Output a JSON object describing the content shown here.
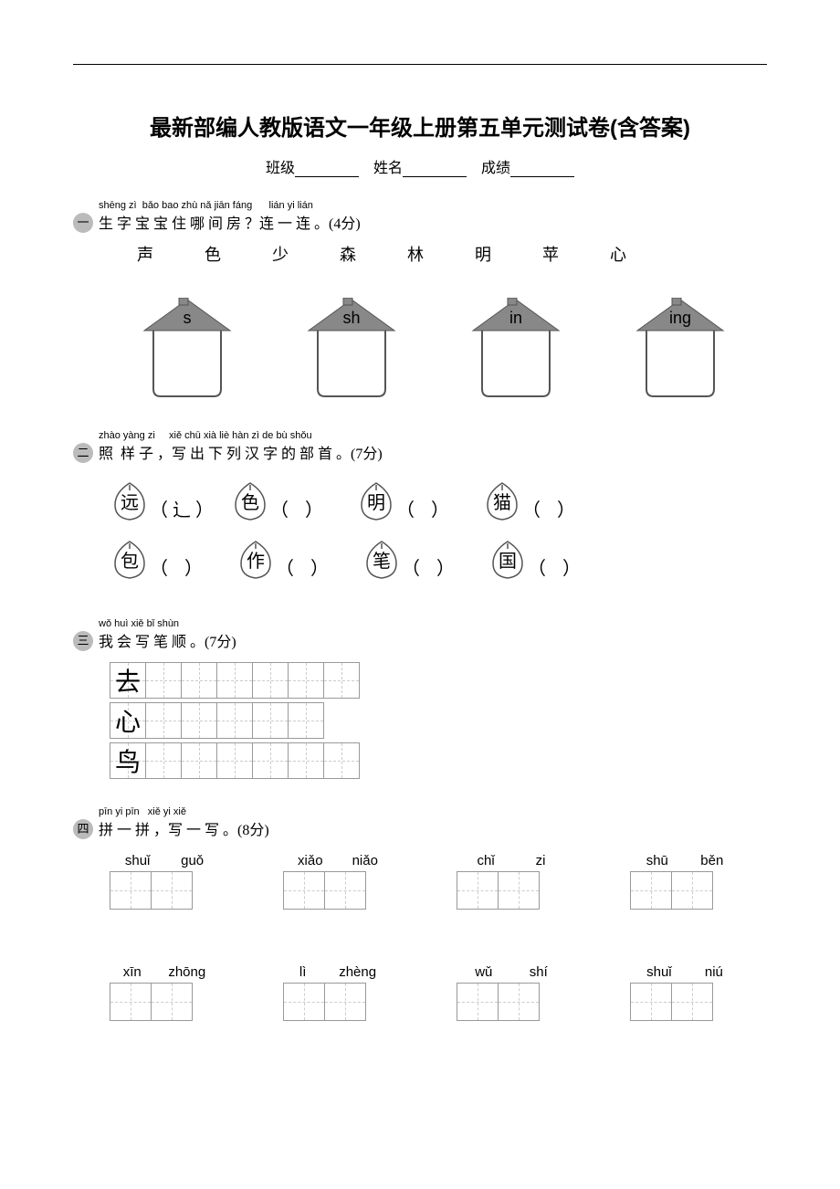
{
  "title": "最新部编人教版语文一年级上册第五单元测试卷(含答案)",
  "info": {
    "class_label": "班级",
    "name_label": "姓名",
    "score_label": "成绩"
  },
  "q1": {
    "marker": "一",
    "pinyin": "shēng zì  bǎo bao zhù nǎ jiān fáng      lián yi lián",
    "hanzi": "生 字 宝 宝 住 哪 间 房 ？连 一 连 。",
    "points": "(4分)",
    "chars": [
      "声",
      "色",
      "少",
      "森",
      "林",
      "明",
      "苹",
      "心"
    ],
    "houses": [
      "s",
      "sh",
      "in",
      "ing"
    ]
  },
  "q2": {
    "marker": "二",
    "pinyin": "zhào yàng zi     xiě chū xià liè hàn zì de bù shǒu",
    "hanzi": "照  样 子 ，写 出 下 列 汉 字 的 部 首 。",
    "points": "(7分)",
    "items": [
      {
        "char": "远",
        "ans": "辶"
      },
      {
        "char": "色",
        "ans": ""
      },
      {
        "char": "明",
        "ans": ""
      },
      {
        "char": "猫",
        "ans": ""
      },
      {
        "char": "包",
        "ans": ""
      },
      {
        "char": "作",
        "ans": ""
      },
      {
        "char": "笔",
        "ans": ""
      },
      {
        "char": "国",
        "ans": ""
      }
    ]
  },
  "q3": {
    "marker": "三",
    "pinyin": "wǒ huì xiě bǐ shùn",
    "hanzi": "我 会 写 笔 顺 。",
    "points": "(7分)",
    "rows": [
      {
        "char": "去",
        "cells": 6
      },
      {
        "char": "心",
        "cells": 5
      },
      {
        "char": "鸟",
        "cells": 6
      }
    ]
  },
  "q4": {
    "marker": "四",
    "pinyin": "pīn yi pīn   xiě yi xiě",
    "hanzi": "拼 一 拼 ，写 一 写 。",
    "points": "(8分)",
    "items": [
      {
        "p1": "shuǐ",
        "p2": "guǒ"
      },
      {
        "p1": "xiǎo",
        "p2": "niǎo"
      },
      {
        "p1": "chǐ",
        "p2": "zi"
      },
      {
        "p1": "shū",
        "p2": "běn"
      },
      {
        "p1": "xīn",
        "p2": "zhōng"
      },
      {
        "p1": "lì",
        "p2": "zhèng"
      },
      {
        "p1": "wǔ",
        "p2": "shí"
      },
      {
        "p1": "shuǐ",
        "p2": "niú"
      }
    ]
  }
}
